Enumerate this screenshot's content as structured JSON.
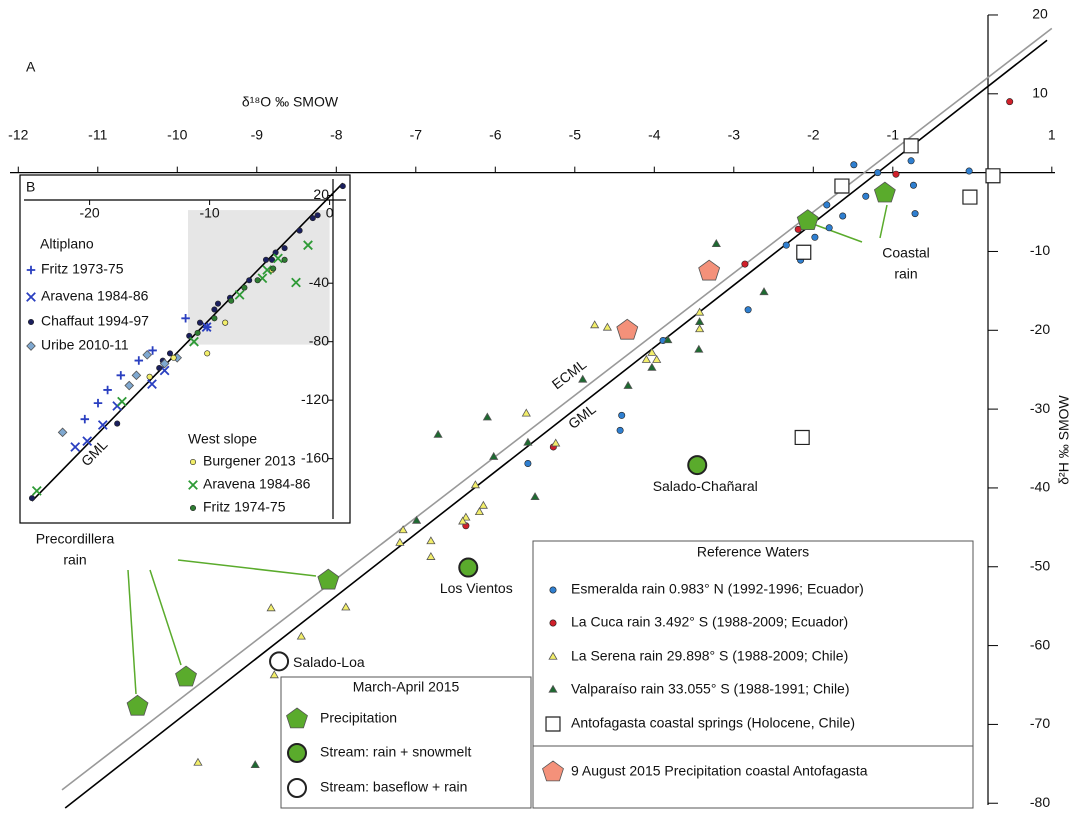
{
  "chart_data": [
    {
      "type": "scatter",
      "panel": "A",
      "xlabel": "δ¹⁸O ‰ SMOW",
      "ylabel": "δ²H ‰ SMOW",
      "xlim": [
        -12.23,
        1.43
      ],
      "ylim": [
        -82,
        21.9
      ],
      "xticks": [
        -12,
        -11,
        -10,
        -9,
        -8,
        -7,
        -6,
        -5,
        -4,
        -3,
        -2,
        -1,
        1
      ],
      "yticks": [
        20,
        10,
        -10,
        -20,
        -30,
        -40,
        -50,
        -60,
        -70,
        -80
      ],
      "lines": [
        {
          "name": "ECML",
          "color": "#999999",
          "x": [
            -11.45,
            1.0
          ],
          "y": [
            -78.3,
            18.3
          ]
        },
        {
          "name": "GML",
          "color": "#000000",
          "x": [
            -11.41,
            0.94
          ],
          "y": [
            -80.6,
            16.8
          ]
        }
      ],
      "annotations": [
        {
          "lines": [
            "Coastal",
            "rain"
          ]
        },
        {
          "lines": [
            "Precordillera",
            "rain"
          ]
        }
      ],
      "series_groups": [
        {
          "title": "Reference Waters",
          "series": [
            {
              "name": "Esmeralda rain 0.983° N (1992-1996; Ecuador)",
              "marker": "dot",
              "color": "#2f7fd0",
              "x": [
                -1.49,
                -1.19,
                -0.77,
                -0.74,
                -0.04,
                -0.72,
                -1.34,
                -1.83,
                -1.63,
                -1.8,
                -1.98,
                -2.34,
                -2.16,
                -2.82,
                -3.89,
                -4.41,
                -4.43,
                -5.59
              ],
              "y": [
                1.0,
                0,
                1.5,
                -1.6,
                0.2,
                -5.2,
                -3.0,
                -4.1,
                -5.5,
                -7.0,
                -8.2,
                -9.2,
                -11.1,
                -17.4,
                -21.3,
                -30.8,
                -32.7,
                -36.9
              ]
            },
            {
              "name": "La Cuca rain 3.492° S (1988-2009; Ecuador)",
              "marker": "dot",
              "color": "#d0202a",
              "x": [
                0.47,
                -0.96,
                -2.19,
                -2.86,
                -5.27,
                -6.37
              ],
              "y": [
                9.0,
                -0.2,
                -7.2,
                -11.6,
                -34.8,
                -44.8
              ]
            },
            {
              "name": "La Serena rain 29.898° S (1988-2009; Chile)",
              "marker": "triangle",
              "color": "#f2ee6a",
              "x": [
                -4.75,
                -4.59,
                -4.03,
                -4.1,
                -3.97,
                -3.43,
                -3.43,
                -5.61,
                -5.24,
                -6.25,
                -6.15,
                -6.2,
                -6.37,
                -6.41,
                -6.81,
                -6.81,
                -7.16,
                -7.2,
                -7.88,
                -8.44,
                -8.82,
                -8.78,
                -9.74,
                -4.38
              ],
              "y": [
                -19.4,
                -19.7,
                -22.9,
                -23.8,
                -23.8,
                -17.8,
                -19.9,
                -30.6,
                -34.4,
                -39.7,
                -42.3,
                -43.1,
                -43.8,
                -44.3,
                -46.8,
                -48.8,
                -45.4,
                -47.0,
                -55.2,
                -58.9,
                -55.3,
                -63.8,
                -74.9,
                -19.9
              ]
            },
            {
              "name": "Valparaíso rain 33.055° S (1988-1991; Chile)",
              "marker": "triangle",
              "color": "#1d6a30",
              "x": [
                -3.22,
                -2.62,
                -3.43,
                -3.83,
                -3.44,
                -4.03,
                -4.33,
                -4.9,
                -6.1,
                -6.72,
                -6.02,
                -5.59,
                -5.5,
                -6.99,
                -9.02,
                -2.12
              ],
              "y": [
                -9.1,
                -15.2,
                -19.0,
                -21.3,
                -22.5,
                -24.8,
                -27.1,
                -26.3,
                -31.1,
                -33.3,
                -36.1,
                -34.3,
                -41.2,
                -44.2,
                -75.2,
                -6.3
              ]
            },
            {
              "name": "Antofagasta coastal springs (Holocene, Chile)",
              "marker": "square",
              "color": "#ffffff",
              "x": [
                -0.77,
                -1.64,
                0.26,
                -0.03,
                -2.12,
                -2.14
              ],
              "y": [
                3.4,
                -1.7,
                -0.4,
                -3.1,
                -10.1,
                -33.6
              ]
            },
            {
              "name": "9 August 2015 Precipitation coastal Antofagasta",
              "marker": "pentagon",
              "color": "#f4917a",
              "x": [
                -4.34,
                -3.31
              ],
              "y": [
                -20.0,
                -12.5
              ]
            }
          ]
        },
        {
          "title": "March-April 2015",
          "series": [
            {
              "name": "Precipitation",
              "marker": "pentagon",
              "color": "#5aab2c",
              "x": [
                -10.5,
                -9.89,
                -8.1,
                -2.07,
                -1.1
              ],
              "y": [
                -67.7,
                -64.0,
                -51.7,
                -6.1,
                -2.6
              ]
            },
            {
              "name": "Stream: rain + snowmelt",
              "marker": "big-circle",
              "color": "#5aab2c",
              "x": [
                -3.46,
                -6.34
              ],
              "y": [
                -37.1,
                -50.1
              ],
              "labels": [
                "Salado-Chañaral",
                "Los Vientos"
              ]
            },
            {
              "name": "Stream: baseflow + rain",
              "marker": "big-circle",
              "color": "#ffffff",
              "x": [
                -8.72
              ],
              "y": [
                -62.0
              ],
              "labels": [
                "Salado-Loa"
              ]
            }
          ]
        }
      ]
    },
    {
      "type": "scatter",
      "panel": "B",
      "xlim": [
        -25.8,
        1.7
      ],
      "ylim": [
        -204,
        34
      ],
      "xticks": [
        -20,
        -10,
        0
      ],
      "yticks": [
        20,
        -40,
        -80,
        -120,
        -160
      ],
      "highlight": {
        "x": [
          -11.8,
          0
        ],
        "y": [
          -82,
          10
        ]
      },
      "lines": [
        {
          "name": "GML",
          "color": "#000000",
          "x": [
            -24.8,
            1.1
          ],
          "y": [
            -189,
            28.4
          ]
        }
      ],
      "series_groups": [
        {
          "title": "Altiplano",
          "series": [
            {
              "name": "Fritz 1973-75",
              "marker": "plus",
              "color": "#2a3fc0",
              "x": [
                -15.9,
                -17.4,
                -18.5,
                -19.3,
                -20.4,
                -14.75,
                -12.0,
                -10.2
              ],
              "y": [
                -92.9,
                -103,
                -113,
                -122,
                -133,
                -86,
                -64,
                -70
              ]
            },
            {
              "name": "Aravena 1984-86",
              "marker": "x",
              "color": "#2a3fc0",
              "x": [
                -21.2,
                -20.2,
                -18.9,
                -17.7,
                -14.8,
                -13.75,
                -10.25
              ],
              "y": [
                -152,
                -148,
                -137,
                -124,
                -109,
                -99.7,
                -70
              ]
            },
            {
              "name": "Chaffaut 1994-97",
              "marker": "dot",
              "color": "#1a1f5e",
              "x": [
                -24.8,
                -8.3,
                -9.6,
                -6.7,
                -4.8,
                -3.75,
                -2.5,
                -1.4,
                -1.0,
                1.1,
                -17.7,
                -14.2,
                -13.9,
                -13.3,
                -11.7,
                -10.8,
                -9.3,
                -5.3,
                -4.5
              ],
              "y": [
                -187,
                -50,
                -58,
                -38,
                -24,
                -16,
                -4,
                4.5,
                6.5,
                26.4,
                -136,
                -98,
                -93,
                -88,
                -76,
                -67,
                -54,
                -24,
                -19
              ]
            },
            {
              "name": "Uribe 2010-11",
              "marker": "diamond",
              "color": "#7fa8d0",
              "x": [
                -22.25,
                -15.2,
                -16.1,
                -16.7,
                -13.75,
                -12.7
              ],
              "y": [
                -142,
                -89,
                -103,
                -110,
                -95,
                -91
              ]
            }
          ]
        },
        {
          "title": "West slope",
          "series": [
            {
              "name": "Burgener 2013",
              "marker": "dot",
              "color": "#f2ee6a",
              "x": [
                -15.0,
                -13.0,
                -10.2,
                -8.7,
                -4.8
              ],
              "y": [
                -104,
                -91,
                -88,
                -67,
                -31
              ]
            },
            {
              "name": "Aravena 1984-86",
              "marker": "x",
              "color": "#2e9a36",
              "x": [
                -24.4,
                -4.3,
                -5.2,
                -2.8,
                -1.8,
                -5.6,
                -7.5,
                -11.3,
                -17.3
              ],
              "y": [
                -182,
                -23,
                -31,
                -39.5,
                -14,
                -36.6,
                -48,
                -80,
                -121
              ]
            },
            {
              "name": "Fritz 1974-75",
              "marker": "dot",
              "color": "#2e7d32",
              "x": [
                -8.2,
                -7.1,
                -6.0,
                -4.7,
                -3.75,
                -9.6,
                -11.0
              ],
              "y": [
                -52,
                -43,
                -38,
                -30,
                -24,
                -64,
                -74
              ]
            }
          ]
        }
      ]
    }
  ]
}
